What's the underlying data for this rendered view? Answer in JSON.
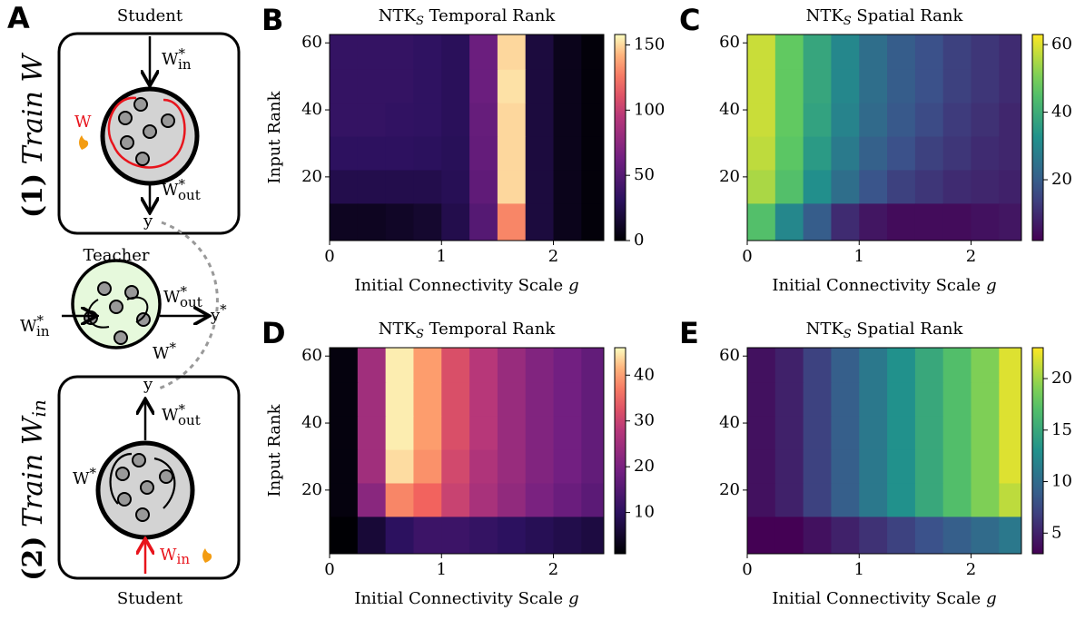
{
  "diagram": {
    "panel": "A",
    "top_student": "Student",
    "top_win": {
      "base": "W",
      "sup": "*",
      "sub": "in"
    },
    "top_w": "W",
    "top_wout": {
      "base": "W",
      "sup": "*",
      "sub": "out"
    },
    "top_y": "y",
    "top_side": {
      "num": "(1)",
      "text": "Train W"
    },
    "teacher": "Teacher",
    "teacher_win": {
      "base": "W",
      "sup": "*",
      "sub": "in"
    },
    "teacher_wout": {
      "base": "W",
      "sup": "*",
      "sub": "out"
    },
    "teacher_y": {
      "base": "y",
      "sup": "*"
    },
    "teacher_w": {
      "base": "W",
      "sup": "*"
    },
    "bottom_y": "y",
    "bottom_wout": {
      "base": "W",
      "sup": "*",
      "sub": "out"
    },
    "bottom_w": {
      "base": "W",
      "sup": "*"
    },
    "bottom_win": {
      "base": "W",
      "sub": "in"
    },
    "bottom_student": "Student",
    "bottom_side": {
      "num": "(2)",
      "text": "Train W",
      "sub": "in"
    }
  },
  "chart_data": [
    {
      "type": "heatmap",
      "panel": "B",
      "title": {
        "main": "NTK",
        "sub": "S",
        "rest": " Temporal Rank"
      },
      "xlabel": "Initial Connectivity Scale",
      "xlabel_var": "g",
      "ylabel": "Input Rank",
      "x": [
        0.125,
        0.375,
        0.625,
        0.875,
        1.125,
        1.375,
        1.625,
        1.875,
        2.125,
        2.375
      ],
      "y": [
        57,
        47,
        37,
        27,
        17,
        7
      ],
      "z": [
        [
          35,
          35,
          35,
          33,
          30,
          60,
          150,
          20,
          8,
          2
        ],
        [
          35,
          35,
          35,
          33,
          30,
          60,
          152,
          20,
          8,
          2
        ],
        [
          35,
          35,
          34,
          33,
          30,
          58,
          150,
          20,
          8,
          2
        ],
        [
          32,
          32,
          32,
          31,
          29,
          57,
          150,
          20,
          8,
          2
        ],
        [
          25,
          25,
          25,
          25,
          28,
          55,
          150,
          20,
          8,
          2
        ],
        [
          10,
          10,
          12,
          15,
          25,
          50,
          130,
          20,
          8,
          2
        ]
      ],
      "xlim": [
        0,
        2.45
      ],
      "ylim": [
        1,
        62.5
      ],
      "xticks": [
        0,
        1,
        2
      ],
      "yticks": [
        20,
        40,
        60
      ],
      "colormap": "magma",
      "clim": [
        0,
        158
      ],
      "cticks": [
        0,
        50,
        100,
        150
      ]
    },
    {
      "type": "heatmap",
      "panel": "C",
      "title": {
        "main": "NTK",
        "sub": "S",
        "rest": " Spatial Rank"
      },
      "xlabel": "Initial Connectivity Scale",
      "xlabel_var": "g",
      "x": [
        0.125,
        0.375,
        0.625,
        0.875,
        1.125,
        1.375,
        1.625,
        1.875,
        2.125,
        2.375
      ],
      "y": [
        57,
        47,
        37,
        27,
        17,
        7
      ],
      "z": [
        [
          58,
          48,
          38,
          30,
          24,
          20,
          17,
          14,
          12,
          10
        ],
        [
          58,
          48,
          38,
          30,
          24,
          20,
          17,
          14,
          12,
          10
        ],
        [
          58,
          48,
          37,
          29,
          23,
          19,
          16,
          13,
          11,
          9
        ],
        [
          57,
          47,
          35,
          27,
          21,
          17,
          14,
          12,
          10,
          9
        ],
        [
          55,
          45,
          32,
          24,
          18,
          14,
          12,
          10,
          9,
          8
        ],
        [
          45,
          30,
          20,
          10,
          6,
          4,
          4,
          4,
          5,
          6
        ]
      ],
      "xlim": [
        0,
        2.45
      ],
      "ylim": [
        1,
        62.5
      ],
      "xticks": [
        0,
        1,
        2
      ],
      "yticks": [
        20,
        40,
        60
      ],
      "colormap": "viridis",
      "clim": [
        2,
        63
      ],
      "cticks": [
        20,
        40,
        60
      ]
    },
    {
      "type": "heatmap",
      "panel": "D",
      "title": {
        "main": "NTK",
        "sub": "S",
        "rest": " Temporal Rank"
      },
      "xlabel": "Initial Connectivity Scale",
      "xlabel_var": "g",
      "ylabel": "Input Rank",
      "x": [
        0.125,
        0.375,
        0.625,
        0.875,
        1.125,
        1.375,
        1.625,
        1.875,
        2.125,
        2.375
      ],
      "y": [
        57,
        47,
        37,
        27,
        17,
        7
      ],
      "z": [
        [
          2,
          25,
          45,
          40,
          32,
          28,
          24,
          21,
          19,
          17
        ],
        [
          2,
          25,
          45,
          40,
          32,
          28,
          24,
          21,
          19,
          17
        ],
        [
          2,
          25,
          45,
          40,
          32,
          28,
          24,
          21,
          19,
          17
        ],
        [
          2,
          25,
          44,
          39,
          31,
          27,
          24,
          21,
          19,
          17
        ],
        [
          2,
          22,
          38,
          35,
          30,
          26,
          23,
          20,
          18,
          16
        ],
        [
          1,
          6,
          10,
          12,
          12,
          11,
          10,
          9,
          8,
          7
        ]
      ],
      "xlim": [
        0,
        2.45
      ],
      "ylim": [
        1,
        62.5
      ],
      "xticks": [
        0,
        1,
        2
      ],
      "yticks": [
        20,
        40,
        60
      ],
      "colormap": "magma",
      "clim": [
        1,
        46
      ],
      "cticks": [
        10,
        20,
        30,
        40
      ]
    },
    {
      "type": "heatmap",
      "panel": "E",
      "title": {
        "main": "NTK",
        "sub": "S",
        "rest": " Spatial Rank"
      },
      "xlabel": "Initial Connectivity Scale",
      "xlabel_var": "g",
      "x": [
        0.125,
        0.375,
        0.625,
        0.875,
        1.125,
        1.375,
        1.625,
        1.875,
        2.125,
        2.375
      ],
      "y": [
        57,
        47,
        37,
        27,
        17,
        7
      ],
      "z": [
        [
          4,
          5,
          7,
          9,
          11,
          13,
          15,
          17,
          19,
          22
        ],
        [
          4,
          5,
          7,
          9,
          11,
          13,
          15,
          17,
          19,
          22
        ],
        [
          4,
          5,
          7,
          9,
          11,
          13,
          15,
          17,
          19,
          22
        ],
        [
          4,
          5,
          7,
          9,
          11,
          13,
          15,
          17,
          19,
          22
        ],
        [
          4,
          5,
          7,
          9,
          11,
          13,
          15,
          17,
          19,
          21
        ],
        [
          3,
          3,
          4,
          5,
          6,
          7,
          8,
          9,
          10,
          11
        ]
      ],
      "xlim": [
        0,
        2.45
      ],
      "ylim": [
        1,
        62.5
      ],
      "xticks": [
        0,
        1,
        2
      ],
      "yticks": [
        20,
        40,
        60
      ],
      "colormap": "viridis",
      "clim": [
        3,
        23
      ],
      "cticks": [
        5,
        10,
        15,
        20
      ]
    }
  ]
}
